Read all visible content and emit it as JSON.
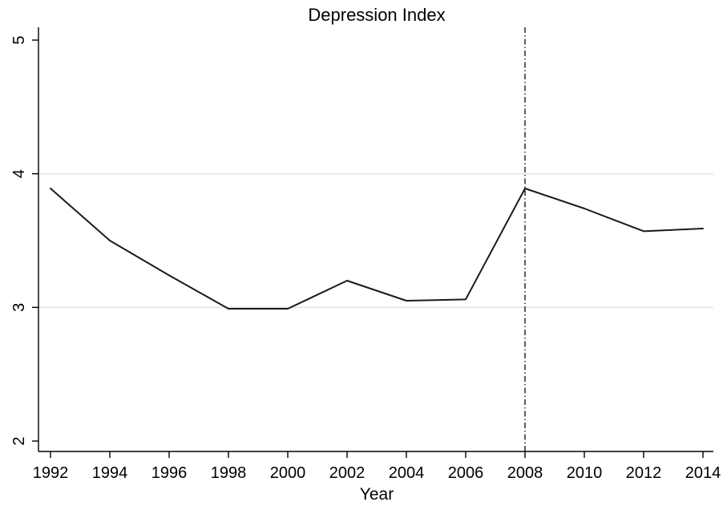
{
  "chart_data": {
    "type": "line",
    "title": "Depression Index",
    "xlabel": "Year",
    "ylabel": "",
    "xlim": [
      1992,
      2014
    ],
    "ylim": [
      2,
      5
    ],
    "x_ticks": [
      1992,
      1994,
      1996,
      1998,
      2000,
      2002,
      2004,
      2006,
      2008,
      2010,
      2012,
      2014
    ],
    "x_tick_labels": [
      "1992",
      "1994",
      "1996",
      "1998",
      "2000",
      "2002",
      "2004",
      "2006",
      "2008",
      "2010",
      "2012",
      "2014"
    ],
    "y_ticks": [
      2,
      3,
      4,
      5
    ],
    "y_tick_labels": [
      "2",
      "3",
      "4",
      "5"
    ],
    "grid": "horizontal",
    "gridlines_y": [
      3,
      4
    ],
    "series": [
      {
        "x": [
          1992,
          1994,
          1996,
          1998,
          2000,
          2002,
          2004,
          2006,
          2008,
          2010,
          2012,
          2014
        ],
        "y": [
          3.89,
          3.5,
          3.24,
          2.99,
          2.99,
          3.2,
          3.05,
          3.06,
          3.89,
          3.74,
          3.57,
          3.59
        ],
        "color": "#1a1a1a"
      }
    ],
    "reference_line": {
      "x": 2008,
      "style": "dash-dot",
      "color": "#1a1a1a"
    },
    "colors": {
      "line": "#1a1a1a",
      "axis": "#000000",
      "grid": "#e3e3e3"
    }
  }
}
